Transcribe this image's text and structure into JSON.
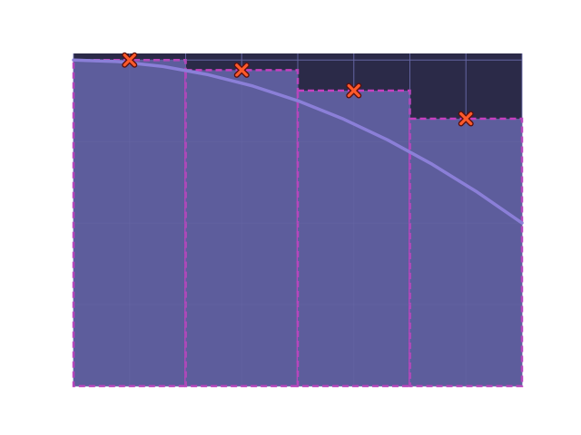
{
  "colors": {
    "plot_background": "#2b2a48",
    "bar_fill": "#5d5d9c",
    "bar_edge": "#c63fc0",
    "grid": "#6a6aa8",
    "curve": "#8b7fd8",
    "marker_fill": "#ff5a2a",
    "marker_edge": "#5a1010"
  },
  "chart_data": {
    "type": "bar",
    "title": "",
    "xlabel": "",
    "ylabel": "",
    "xlim": [
      0,
      1
    ],
    "ylim": [
      0,
      1.02
    ],
    "bars": [
      {
        "left": 0.0,
        "right": 0.25,
        "height": 1.0
      },
      {
        "left": 0.25,
        "right": 0.5,
        "height": 0.969
      },
      {
        "left": 0.5,
        "right": 0.75,
        "height": 0.906
      },
      {
        "left": 0.75,
        "right": 1.0,
        "height": 0.82
      }
    ],
    "markers": [
      {
        "x": 0.125,
        "y": 1.0
      },
      {
        "x": 0.375,
        "y": 0.969
      },
      {
        "x": 0.625,
        "y": 0.906
      },
      {
        "x": 0.875,
        "y": 0.82
      }
    ],
    "curve": {
      "x": [
        0,
        0.1,
        0.2,
        0.3,
        0.4,
        0.5,
        0.6,
        0.7,
        0.8,
        0.9,
        1.0
      ],
      "y": [
        1.0,
        0.995,
        0.98,
        0.955,
        0.92,
        0.875,
        0.82,
        0.755,
        0.68,
        0.595,
        0.5
      ]
    },
    "grid": true,
    "xgrid_values": [
      0.0,
      0.125,
      0.25,
      0.375,
      0.5,
      0.625,
      0.75,
      0.875,
      1.0
    ],
    "ygrid_values": [
      0.0,
      0.25,
      0.5,
      0.75,
      1.0
    ],
    "legend": "none"
  }
}
